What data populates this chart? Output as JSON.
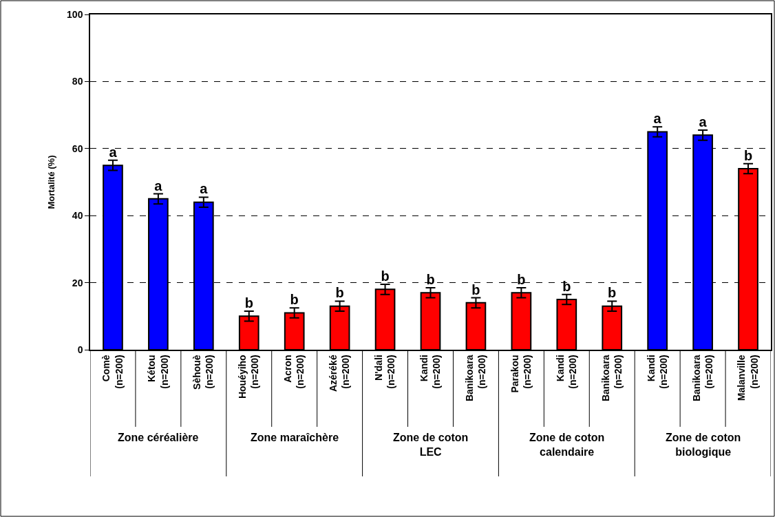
{
  "chart_data": {
    "type": "bar",
    "ylabel": "Mortalité (%)",
    "categories": [
      "Comè\n(n=200)",
      "Kétou\n(n=200)",
      "Sèhouè\n(n=200)",
      "Houéyiho\n(n=200)",
      "Acron\n(n=200)",
      "Azéréké\n(n=200)",
      "N'dali\n(n=200)",
      "Kandi\n(n=200)",
      "Banikoara\n(n=200)",
      "Parakou\n(n=200)",
      "Kandi\n(n=200)",
      "Banikoara\n(n=200)",
      "Kandi\n(n=200)",
      "Banikoara\n(n=200)",
      "Malanville\n(n=200)"
    ],
    "values": [
      55,
      45,
      44,
      10,
      11,
      13,
      18,
      17,
      14,
      17,
      15,
      13,
      65,
      64,
      54
    ],
    "errors": [
      1.5,
      1.5,
      1.5,
      1.5,
      1.5,
      1.5,
      1.5,
      1.5,
      1.5,
      1.5,
      1.5,
      1.5,
      1.5,
      1.5,
      1.5
    ],
    "colors": [
      "#0000ff",
      "#0000ff",
      "#0000ff",
      "#ff0000",
      "#ff0000",
      "#ff0000",
      "#ff0000",
      "#ff0000",
      "#ff0000",
      "#ff0000",
      "#ff0000",
      "#ff0000",
      "#0000ff",
      "#0000ff",
      "#ff0000"
    ],
    "value_labels": [
      "a",
      "a",
      "a",
      "b",
      "b",
      "b",
      "b",
      "b",
      "b",
      "b",
      "b",
      "b",
      "a",
      "a",
      "b"
    ],
    "annotations": [
      "Zone céréalière",
      "Zone maraîchère",
      "Zone de coton\nLEC",
      "Zone de coton\ncalendaire",
      "Zone de coton\nbiologique"
    ],
    "ylim": [
      0,
      100
    ],
    "yticks": [
      0,
      20,
      40,
      60,
      80,
      100
    ],
    "grid": "y"
  }
}
